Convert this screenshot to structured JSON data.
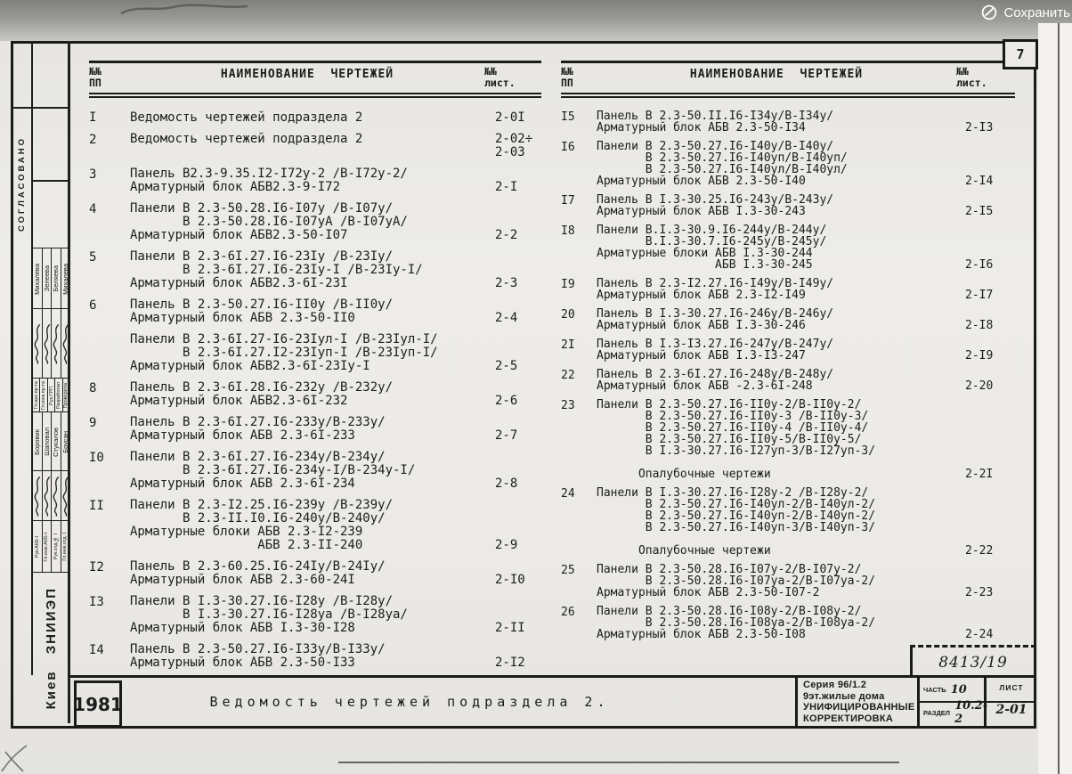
{
  "overlay": {
    "save_label": "Сохранить",
    "accent_color": "#ffffff"
  },
  "page": {
    "corner_number": "7",
    "paper_color": "#eceae6",
    "ink_color": "#1c1c1c"
  },
  "table_header": {
    "num": "№№\nПП",
    "name": "НАИМЕНОВАНИЕ  ЧЕРТЕЖЕЙ",
    "sheet": "№№\nлист."
  },
  "tables": {
    "left": {
      "rows": [
        {
          "num": "I",
          "lines": [
            "Ведомость чертежей подраздела 2"
          ],
          "sheet": [
            "2-0I"
          ]
        },
        {
          "num": "2",
          "lines": [
            "Ведомость чертежей подраздела 2"
          ],
          "sheet": [
            "2-02÷",
            "2-03"
          ]
        },
        {
          "num": "3",
          "lines": [
            "Панель В2.3-9.35.I2-I72у-2 /В-I72у-2/",
            "Арматурный блок АБВ2.3-9-I72"
          ],
          "sheet": [
            "2-I"
          ]
        },
        {
          "num": "4",
          "lines": [
            "Панели В 2.3-50.28.I6-I07у /В-I07у/",
            "       В 2.3-50.28.I6-I07уА /В-I07уА/",
            "Арматурный блок АБВ2.3-50-I07"
          ],
          "sheet": [
            "2-2"
          ]
        },
        {
          "num": "5",
          "lines": [
            "Панели В 2.3-6I.27.I6-23Iу /В-23Iу/",
            "       В 2.3-6I.27.I6-23Iу-I /В-23Iу-I/",
            "Арматурный блок АБВ2.3-6I-23I"
          ],
          "sheet": [
            "2-3"
          ]
        },
        {
          "num": "6",
          "lines": [
            "Панель В 2.3-50.27.I6-II0у /В-II0у/",
            "Арматурный блок АБВ 2.3-50-II0"
          ],
          "sheet": [
            "2-4"
          ]
        },
        {
          "num": "",
          "lines": [
            "Панели В 2.3-6I.27-I6-23Iул-I /В-23Iул-I/",
            "       В 2.3-6I.27.I2-23Iуп-I /В-23Iуп-I/",
            "Арматурный блок АБВ2.3-6I-23Iу-I"
          ],
          "sheet": [
            "2-5"
          ]
        },
        {
          "num": "8",
          "lines": [
            "Панель В 2.3-6I.28.I6-232у /В-232у/",
            "Арматурный блок АБВ2.3-6I-232"
          ],
          "sheet": [
            "2-6"
          ]
        },
        {
          "num": "9",
          "lines": [
            "Панель В 2.3-6I.27.I6-233у/В-233у/",
            "Арматурный блок АБВ 2.3-6I-233"
          ],
          "sheet": [
            "2-7"
          ]
        },
        {
          "num": "I0",
          "lines": [
            "Панели В 2.3-6I.27.I6-234у/В-234у/",
            "       В 2.3-6I.27.I6-234у-I/В-234у-I/",
            "Арматурный блок АБВ 2.3-6I-234"
          ],
          "sheet": [
            "2-8"
          ]
        },
        {
          "num": "II",
          "lines": [
            "Панели В 2.3-I2.25.I6-239у /В-239у/",
            "       В 2.3-II.I0.I6-240у/В-240у/",
            "Арматурные блоки АБВ 2.3-I2-239",
            "                 АБВ 2.3-II-240"
          ],
          "sheet": [
            "2-9"
          ]
        },
        {
          "num": "I2",
          "lines": [
            "Панель В 2.3-60.25.I6-24Iу/В-24Iу/",
            "Арматурный блок АБВ 2.3-60-24I"
          ],
          "sheet": [
            "2-I0"
          ]
        },
        {
          "num": "I3",
          "lines": [
            "Панели В I.3-30.27.I6-I28у /В-I28у/",
            "       В I.3-30.27.I6-I28уа /В-I28уа/",
            "Арматурный блок АБВ I.3-30-I28"
          ],
          "sheet": [
            "2-II"
          ]
        },
        {
          "num": "I4",
          "lines": [
            "Панель В 2.3-50.27.I6-I33у/В-I33у/",
            "Арматурный блок АБВ 2.3-50-I33"
          ],
          "sheet": [
            "2-I2"
          ]
        }
      ]
    },
    "right": {
      "rows": [
        {
          "num": "I5",
          "lines": [
            "Панель В 2.3-50.II.I6-I34у/В-I34у/",
            "Арматурный блок АБВ 2.3-50-I34"
          ],
          "sheet": [
            "2-I3"
          ]
        },
        {
          "num": "I6",
          "lines": [
            "Панели В 2.3-50.27.I6-I40у/В-I40у/",
            "       В 2.3-50.27.I6-I40уп/В-I40уп/",
            "       В 2.3-50.27.I6-I40ул/В-I40ул/",
            "Арматурный блок АБВ 2.3-50-I40"
          ],
          "sheet": [
            "2-I4"
          ]
        },
        {
          "num": "I7",
          "lines": [
            "Панель В I.3-30.25.I6-243у/В-243у/",
            "Арматурный блок АБВ I.3-30-243"
          ],
          "sheet": [
            "2-I5"
          ]
        },
        {
          "num": "I8",
          "lines": [
            "Панели В.I.3-30.9.I6-244у/В-244у/",
            "       В.I.3-30.7.I6-245у/В-245у/",
            "Арматурные блоки АБВ I.3-30-244",
            "                 АБВ I.3-30-245"
          ],
          "sheet": [
            "2-I6"
          ]
        },
        {
          "num": "I9",
          "lines": [
            "Панель В 2.3-I2.27.I6-I49у/В-I49у/",
            "Арматурный блок АБВ 2.3-I2-I49"
          ],
          "sheet": [
            "2-I7"
          ]
        },
        {
          "num": "20",
          "lines": [
            "Панель В I.3-30.27.I6-246у/В-246у/",
            "Арматурный блок АБВ I.3-30-246"
          ],
          "sheet": [
            "2-I8"
          ]
        },
        {
          "num": "2I",
          "lines": [
            "Панель В I.3-I3.27.I6-247у/В-247у/",
            "Арматурный блок АБВ I.3-I3-247"
          ],
          "sheet": [
            "2-I9"
          ]
        },
        {
          "num": "22",
          "lines": [
            "Панель В 2.3-6I.27.I6-248у/В-248у/",
            "Арматурный блок АБВ -2.3-6I-248"
          ],
          "sheet": [
            "2-20"
          ]
        },
        {
          "num": "23",
          "lines": [
            "Панели В 2.3-50.27.I6-II0у-2/В-II0у-2/",
            "       В 2.3-50.27.I6-II0у-3 /В-II0у-3/",
            "       В 2.3-50.27.I6-II0у-4 /В-II0у-4/",
            "       В 2.3-50.27.I6-II0у-5/В-II0у-5/",
            "       В I.3-30.27.I6-I27уп-3/В-I27уп-3/",
            "",
            "      Опалубочные чертежи"
          ],
          "sheet": [
            "2-2I"
          ]
        },
        {
          "num": "24",
          "lines": [
            "Панели В I.3-30.27.I6-I28у-2 /В-I28у-2/",
            "       В 2.3-50.27.I6-I40ул-2/В-I40ул-2/",
            "       В 2.3-50.27.I6-I40уп-2/В-I40уп-2/",
            "       В 2.3-50.27.I6-I40уп-3/В-I40уп-3/",
            "",
            "      Опалубочные чертежи"
          ],
          "sheet": [
            "2-22"
          ]
        },
        {
          "num": "25",
          "lines": [
            "Панели В 2.3-50.28.I6-I07у-2/В-I07у-2/",
            "       В 2.3-50.28.I6-I07уа-2/В-I07уа-2/",
            "Арматурный блок АБВ 2.3-50-I07-2"
          ],
          "sheet": [
            "2-23"
          ]
        },
        {
          "num": "26",
          "lines": [
            "Панели В 2.3-50.28.I6-I08у-2/В-I08у-2/",
            "       В 2.3-50.28.I6-I08уа-2/В-I08уа-2/",
            "Арматурный блок АБВ 2.3-50-I08"
          ],
          "sheet": [
            "2-24"
          ]
        }
      ]
    }
  },
  "sidebar": {
    "agreed_label": "СОГЛАСОВАНО",
    "group1_names": [
      "Михалева",
      "Зелеева",
      "Беляева",
      "Михалева"
    ],
    "group1_roles": [
      "Гл.арх.пр-та",
      "Гл.инж.пр-та",
      "Рук.ГРП",
      "Разработал",
      "Проверила"
    ],
    "group2_names": [
      "Боровик",
      "Шаповал",
      "Стукалов",
      "Брусан"
    ],
    "group2_roles": [
      "Рук.АКБ-I",
      "Гл.инж.АКБ-I",
      "Рук.отд.№ I",
      "Гл.инж.отд. I"
    ],
    "organization": "Киев ЗНИИЭП"
  },
  "title_block": {
    "year": "1981",
    "main_title": "Ведомость чертежей подраздела 2.",
    "doc_number": "8413/19",
    "series_lines": [
      "Серия 96/1.2",
      "9эт.жилые дома",
      "УНИФИЦИРОВАННЫЕ",
      "КОРРЕКТИРОВКА"
    ],
    "part_label": "ЧАСТЬ",
    "part_value": "10",
    "section_label": "РАЗДЕЛ",
    "section_value": "10.2-2",
    "sheet_label": "ЛИСТ",
    "sheet_value": "2-01"
  }
}
